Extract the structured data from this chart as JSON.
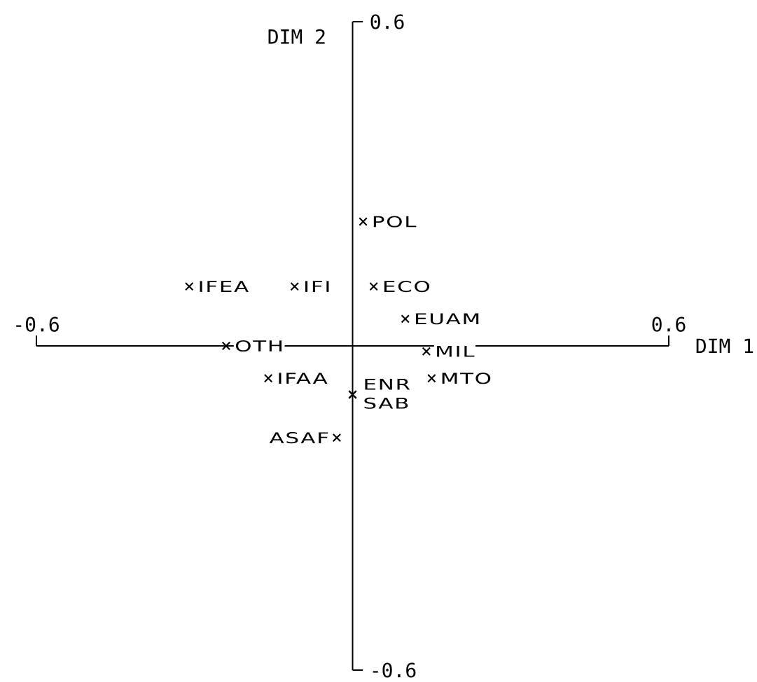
{
  "chart_data": {
    "type": "scatter",
    "xlabel": "DIM 1",
    "ylabel": "DIM 2",
    "x": [
      0.02,
      -0.31,
      -0.11,
      0.04,
      0.1,
      -0.24,
      0.14,
      -0.16,
      0.15,
      0.0,
      0.0,
      -0.03
    ],
    "values": [
      0.23,
      0.11,
      0.11,
      0.11,
      0.05,
      0.0,
      -0.01,
      -0.06,
      -0.06,
      -0.09,
      -0.09,
      -0.17
    ],
    "color": "#000000",
    "marker": "cross",
    "xlim": [
      -0.6,
      0.6
    ],
    "ylim": [
      -0.6,
      0.6
    ],
    "xticks": [
      -0.6,
      0.6
    ],
    "yticks": [
      -0.6,
      0.6
    ],
    "annotations": [
      {
        "text": "POL",
        "x": 0.02,
        "y": 0.23
      },
      {
        "text": "IFEA",
        "x": -0.31,
        "y": 0.11
      },
      {
        "text": "IFI",
        "x": -0.11,
        "y": 0.11
      },
      {
        "text": "ECO",
        "x": 0.04,
        "y": 0.11
      },
      {
        "text": "EUAM",
        "x": 0.1,
        "y": 0.05
      },
      {
        "text": "OTH",
        "x": -0.24,
        "y": 0.0
      },
      {
        "text": "MIL",
        "x": 0.14,
        "y": -0.01
      },
      {
        "text": "IFAA",
        "x": -0.16,
        "y": -0.06
      },
      {
        "text": "MTO",
        "x": 0.15,
        "y": -0.06
      },
      {
        "text": "ENR",
        "x": 0.0,
        "y": -0.09
      },
      {
        "text": "SAB",
        "x": 0.0,
        "y": -0.09
      },
      {
        "text": "ASAF",
        "x": -0.03,
        "y": -0.17
      }
    ]
  }
}
